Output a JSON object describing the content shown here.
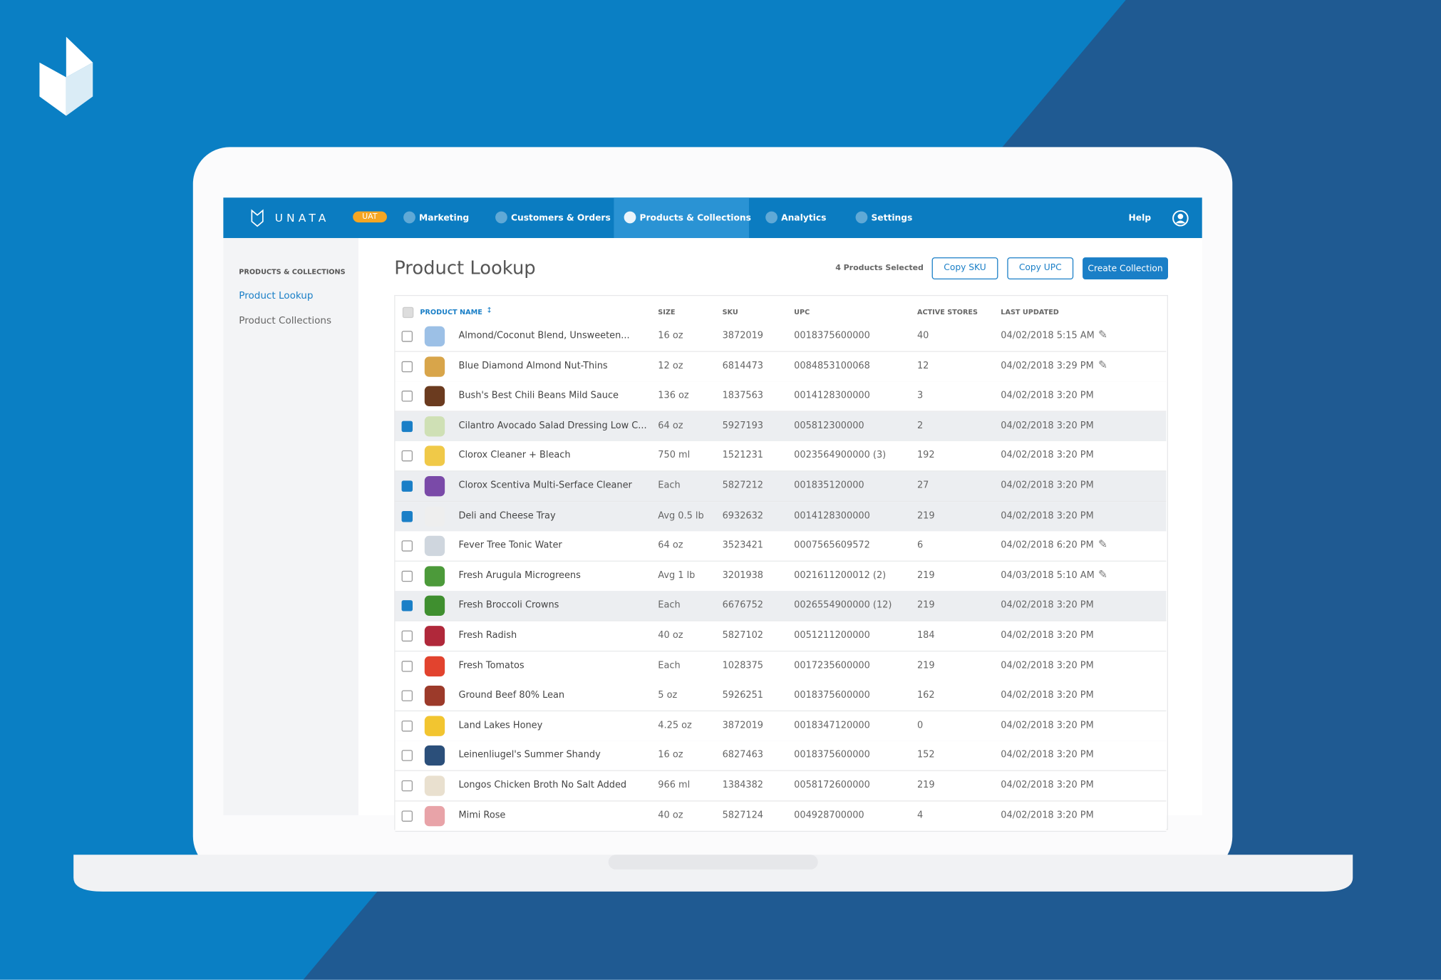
{
  "brand": "UNATA",
  "env_badge": "UAT",
  "nav": {
    "items": [
      "Marketing",
      "Customers & Orders",
      "Products & Collections",
      "Analytics",
      "Settings"
    ],
    "active": 2,
    "help": "Help"
  },
  "sidebar": {
    "heading": "PRODUCTS & COLLECTIONS",
    "links": [
      "Product Lookup",
      "Product Collections"
    ],
    "active": 0
  },
  "page": {
    "title": "Product Lookup",
    "selected": "4 Products Selected",
    "buttons": [
      "Copy SKU",
      "Copy UPC",
      "Create Collection"
    ]
  },
  "table": {
    "columns": [
      "PRODUCT NAME",
      "SIZE",
      "SKU",
      "UPC",
      "ACTIVE STORES",
      "LAST UPDATED"
    ],
    "rows": [
      {
        "name": "Almond/Coconut Blend, Unsweeten...",
        "size": "16 oz",
        "sku": "3872019",
        "upc": "0018375600000",
        "stores": 40,
        "updated": "04/02/2018 5:15 AM",
        "selected": false,
        "edit": true
      },
      {
        "name": "Blue Diamond Almond Nut-Thins",
        "size": "12 oz",
        "sku": "6814473",
        "upc": "0084853100068",
        "stores": 12,
        "updated": "04/02/2018 3:29 PM",
        "selected": false,
        "edit": true
      },
      {
        "name": "Bush's Best Chili Beans Mild Sauce",
        "size": "136 oz",
        "sku": "1837563",
        "upc": "0014128300000",
        "stores": 3,
        "updated": "04/02/2018 3:20 PM",
        "selected": false,
        "edit": false
      },
      {
        "name": "Cilantro Avocado Salad Dressing Low C...",
        "size": "64 oz",
        "sku": "5927193",
        "upc": "005812300000",
        "stores": 2,
        "updated": "04/02/2018 3:20 PM",
        "selected": true,
        "edit": false
      },
      {
        "name": "Clorox Cleaner + Bleach",
        "size": "750 ml",
        "sku": "1521231",
        "upc": "0023564900000 (3)",
        "stores": 192,
        "updated": "04/02/2018 3:20 PM",
        "selected": false,
        "edit": false
      },
      {
        "name": "Clorox Scentiva Multi-Serface Cleaner",
        "size": "Each",
        "sku": "5827212",
        "upc": "001835120000",
        "stores": 27,
        "updated": "04/02/2018 3:20 PM",
        "selected": true,
        "edit": false
      },
      {
        "name": "Deli and Cheese Tray",
        "size": "Avg 0.5 lb",
        "sku": "6932632",
        "upc": "0014128300000",
        "stores": 219,
        "updated": "04/02/2018 3:20 PM",
        "selected": true,
        "edit": false
      },
      {
        "name": "Fever Tree Tonic Water",
        "size": "64 oz",
        "sku": "3523421",
        "upc": "0007565609572",
        "stores": 6,
        "updated": "04/02/2018 6:20 PM",
        "selected": false,
        "edit": true
      },
      {
        "name": "Fresh Arugula Microgreens",
        "size": "Avg 1 lb",
        "sku": "3201938",
        "upc": "0021611200012 (2)",
        "stores": 219,
        "updated": "04/03/2018 5:10 AM",
        "selected": false,
        "edit": true
      },
      {
        "name": "Fresh Broccoli Crowns",
        "size": "Each",
        "sku": "6676752",
        "upc": "0026554900000 (12)",
        "stores": 219,
        "updated": "04/02/2018 3:20 PM",
        "selected": true,
        "edit": false
      },
      {
        "name": "Fresh Radish",
        "size": "40 oz",
        "sku": "5827102",
        "upc": "0051211200000",
        "stores": 184,
        "updated": "04/02/2018 3:20 PM",
        "selected": false,
        "edit": false
      },
      {
        "name": "Fresh Tomatos",
        "size": "Each",
        "sku": "1028375",
        "upc": "0017235600000",
        "stores": 219,
        "updated": "04/02/2018 3:20 PM",
        "selected": false,
        "edit": false
      },
      {
        "name": "Ground Beef 80% Lean",
        "size": "5 oz",
        "sku": "5926251",
        "upc": "0018375600000",
        "stores": 162,
        "updated": "04/02/2018 3:20 PM",
        "selected": false,
        "edit": false
      },
      {
        "name": "Land Lakes Honey",
        "size": "4.25 oz",
        "sku": "3872019",
        "upc": "0018347120000",
        "stores": 0,
        "updated": "04/02/2018 3:20 PM",
        "selected": false,
        "edit": false
      },
      {
        "name": "Leinenliugel's Summer Shandy",
        "size": "16 oz",
        "sku": "6827463",
        "upc": "0018375600000",
        "stores": 152,
        "updated": "04/02/2018 3:20 PM",
        "selected": false,
        "edit": false
      },
      {
        "name": "Longos Chicken Broth No Salt Added",
        "size": "966 ml",
        "sku": "1384382",
        "upc": "0058172600000",
        "stores": 219,
        "updated": "04/02/2018 3:20 PM",
        "selected": false,
        "edit": false
      },
      {
        "name": "Mimi Rose",
        "size": "40 oz",
        "sku": "5827124",
        "upc": "004928700000",
        "stores": 4,
        "updated": "04/02/2018 3:20 PM",
        "selected": false,
        "edit": false
      }
    ]
  }
}
